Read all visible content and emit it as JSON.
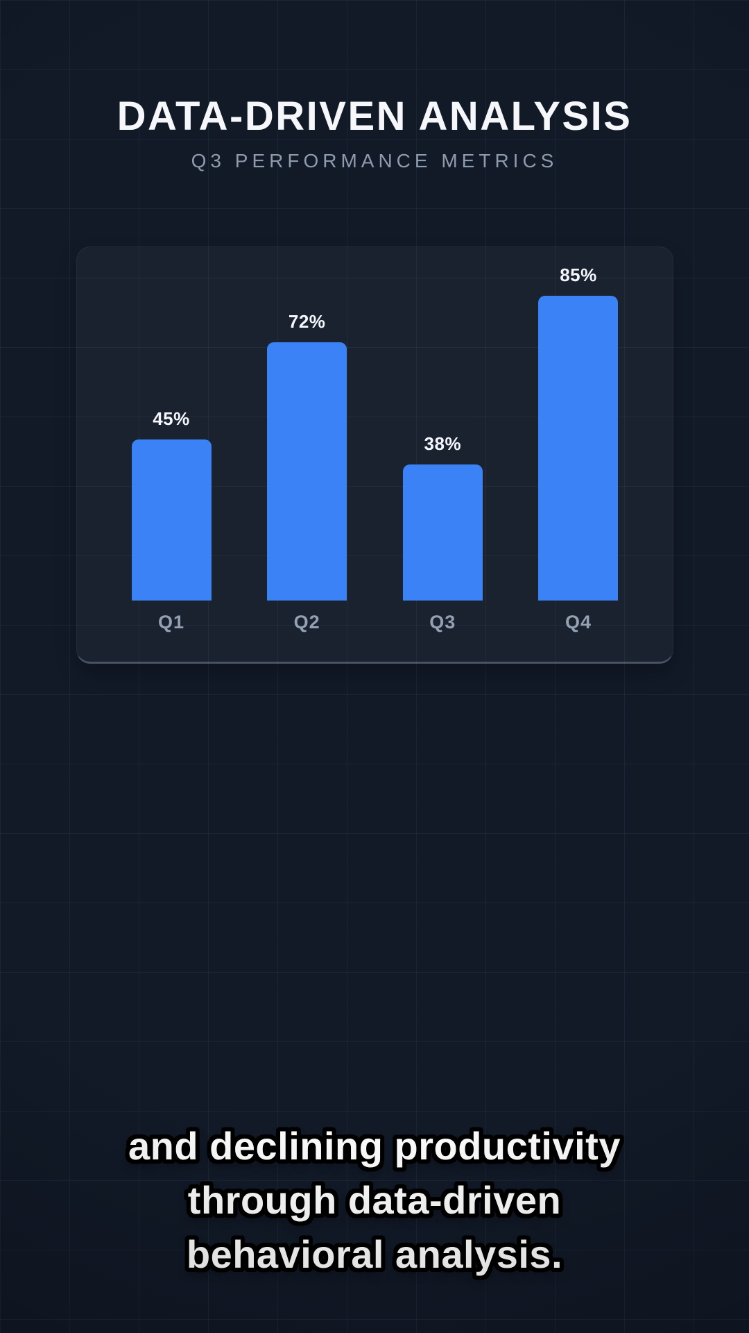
{
  "header": {
    "title": "DATA-DRIVEN ANALYSIS",
    "subtitle": "Q3 PERFORMANCE METRICS"
  },
  "chart_data": {
    "type": "bar",
    "title": "Q3 PERFORMANCE METRICS",
    "categories": [
      "Q1",
      "Q2",
      "Q3",
      "Q4"
    ],
    "values": [
      45,
      72,
      38,
      85
    ],
    "value_labels": [
      "45%",
      "72%",
      "38%",
      "85%"
    ],
    "unit": "percent",
    "ylim": [
      0,
      100
    ],
    "legend": "none",
    "grid": "decorative-background-grid",
    "bar_color": "#3b82f6",
    "value_label_color": "#f4f7fb",
    "category_label_color": "#93a1b3"
  },
  "caption": {
    "lines": [
      "and declining productivity",
      "through data-driven",
      "behavioral analysis."
    ]
  },
  "colors": {
    "background": "#121a28",
    "panel": "#1a2232",
    "grid_line": "#233043",
    "title": "#f5f7fa",
    "subtitle": "#8e9bad"
  }
}
